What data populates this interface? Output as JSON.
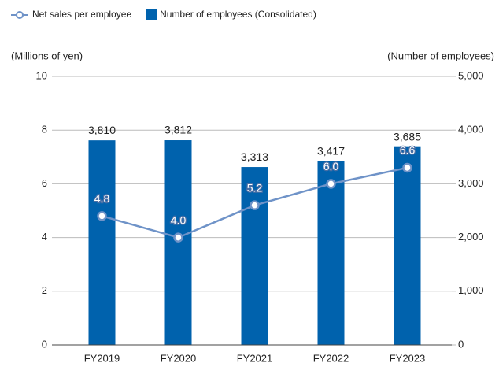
{
  "chart_data": {
    "type": "bar-line",
    "categories": [
      "FY2019",
      "FY2020",
      "FY2021",
      "FY2022",
      "FY2023"
    ],
    "series": [
      {
        "name": "Net sales per employee",
        "type": "line",
        "color": "#6f93c8",
        "axis": "y",
        "values": [
          4.8,
          4.0,
          5.2,
          6.0,
          6.6
        ],
        "value_labels": [
          "4.8",
          "4.0",
          "5.2",
          "6.0",
          "6.6"
        ]
      },
      {
        "name": "Number of employees (Consolidated)",
        "type": "bar",
        "color": "#0062ad",
        "axis": "y2",
        "values": [
          3810,
          3812,
          3313,
          3417,
          3685
        ],
        "value_labels": [
          "3,810",
          "3,812",
          "3,313",
          "3,417",
          "3,685"
        ]
      }
    ],
    "ylabel": "(Millions of yen)",
    "y2label": "(Number of employees)",
    "ylim": [
      0,
      10
    ],
    "yticks": [
      0,
      2,
      4,
      6,
      8,
      10
    ],
    "y2lim": [
      0,
      5000
    ],
    "y2ticks": [
      0,
      {
        "value": 1000,
        "label": "1,000"
      },
      {
        "value": 2000,
        "label": "2,000"
      },
      {
        "value": 3000,
        "label": "3,000"
      },
      {
        "value": 4000,
        "label": "4,000"
      },
      {
        "value": 5000,
        "label": "5,000"
      }
    ],
    "grid": true,
    "legend": "top-left"
  }
}
